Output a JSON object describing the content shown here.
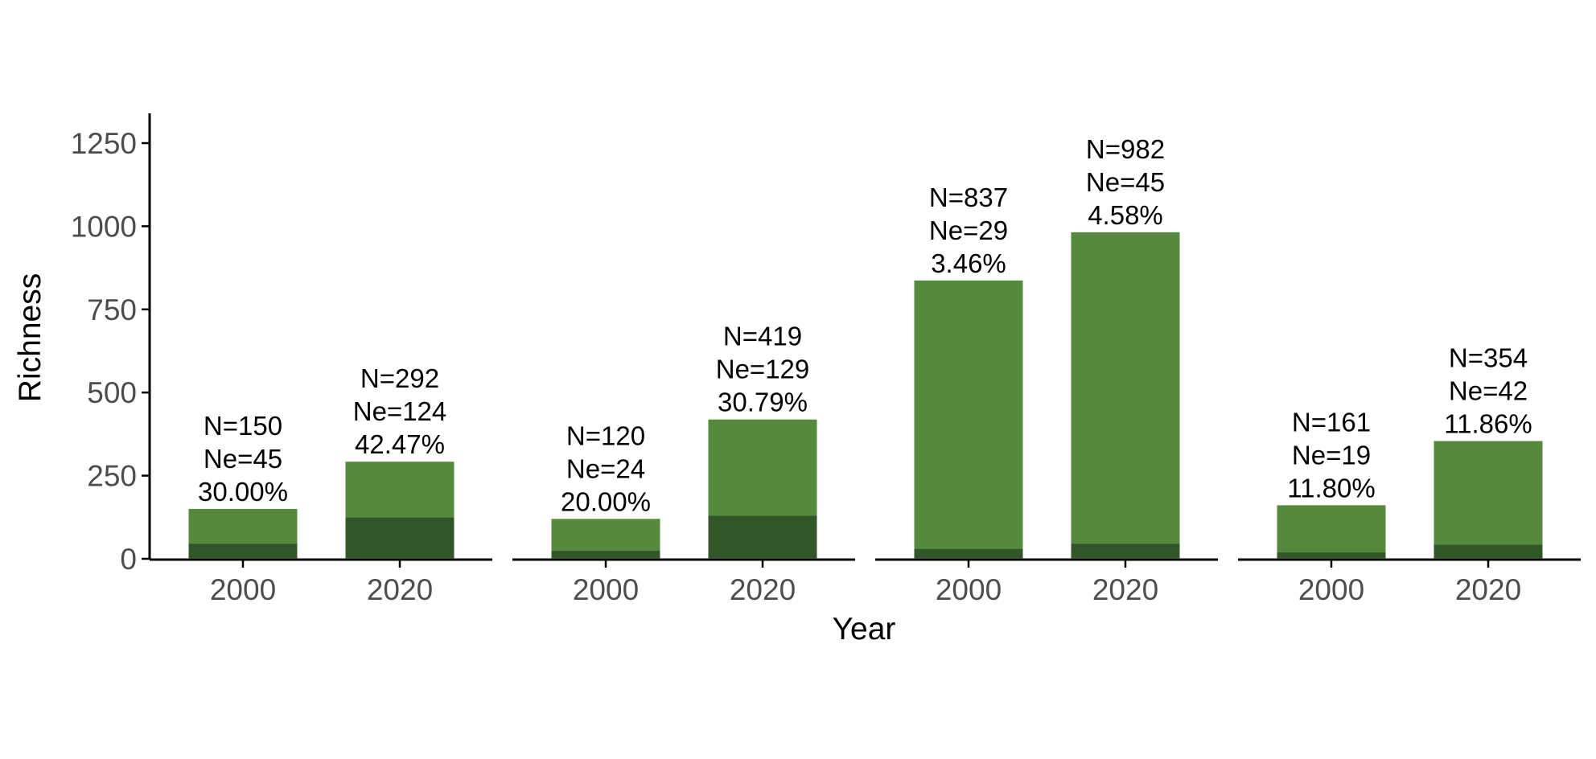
{
  "chart_data": {
    "type": "bar",
    "xlabel": "Year",
    "ylabel": "Richness",
    "ylim": [
      0,
      1350
    ],
    "yticks": [
      0,
      250,
      500,
      750,
      1000,
      1250
    ],
    "grid": false,
    "legend": "none",
    "colors": {
      "total": "#558a3e",
      "native": "#33552a",
      "axis": "#000000",
      "tick_text": "#4d4d4d"
    },
    "panels": [
      {
        "bars": [
          {
            "category": "2000",
            "total": 150,
            "native": 45,
            "label": [
              "N=150",
              "Ne=45",
              "30.00%"
            ]
          },
          {
            "category": "2020",
            "total": 292,
            "native": 124,
            "label": [
              "N=292",
              "Ne=124",
              "42.47%"
            ]
          }
        ]
      },
      {
        "bars": [
          {
            "category": "2000",
            "total": 120,
            "native": 24,
            "label": [
              "N=120",
              "Ne=24",
              "20.00%"
            ]
          },
          {
            "category": "2020",
            "total": 419,
            "native": 129,
            "label": [
              "N=419",
              "Ne=129",
              "30.79%"
            ]
          }
        ]
      },
      {
        "bars": [
          {
            "category": "2000",
            "total": 837,
            "native": 29,
            "label": [
              "N=837",
              "Ne=29",
              "3.46%"
            ]
          },
          {
            "category": "2020",
            "total": 982,
            "native": 45,
            "label": [
              "N=982",
              "Ne=45",
              "4.58%"
            ]
          }
        ]
      },
      {
        "bars": [
          {
            "category": "2000",
            "total": 161,
            "native": 19,
            "label": [
              "N=161",
              "Ne=19",
              "11.80%"
            ]
          },
          {
            "category": "2020",
            "total": 354,
            "native": 42,
            "label": [
              "N=354",
              "Ne=42",
              "11.86%"
            ]
          }
        ]
      }
    ]
  }
}
